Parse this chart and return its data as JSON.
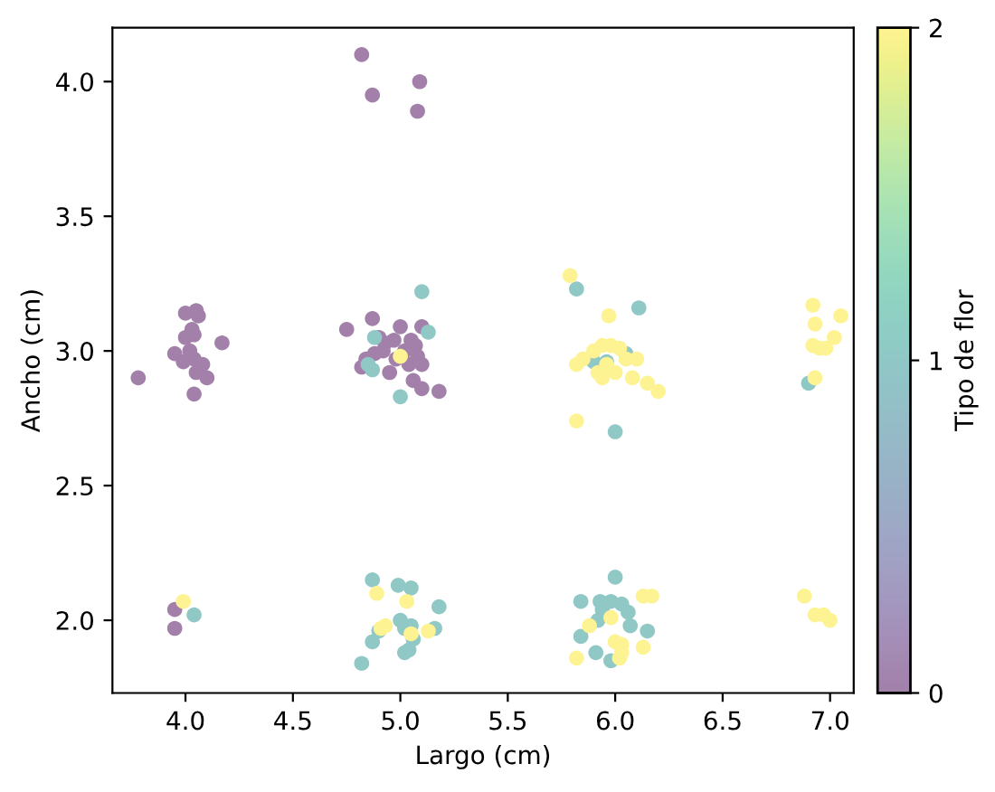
{
  "chart_data": {
    "type": "scatter",
    "xlabel": "Largo (cm)",
    "ylabel": "Ancho (cm)",
    "clabel": "Tipo de flor",
    "xlim": [
      3.66,
      7.11
    ],
    "ylim": [
      1.73,
      4.2
    ],
    "xticks": [
      {
        "value": 4.0,
        "label": "4.0"
      },
      {
        "value": 4.5,
        "label": "4.5"
      },
      {
        "value": 5.0,
        "label": "5.0"
      },
      {
        "value": 5.5,
        "label": "5.5"
      },
      {
        "value": 6.0,
        "label": "6.0"
      },
      {
        "value": 6.5,
        "label": "6.5"
      },
      {
        "value": 7.0,
        "label": "7.0"
      }
    ],
    "yticks": [
      {
        "value": 2.0,
        "label": "2.0"
      },
      {
        "value": 2.5,
        "label": "2.5"
      },
      {
        "value": 3.0,
        "label": "3.0"
      },
      {
        "value": 3.5,
        "label": "3.5"
      },
      {
        "value": 4.0,
        "label": "4.0"
      }
    ],
    "clim": [
      0,
      2
    ],
    "cticks": [
      0,
      1,
      2
    ],
    "marker": "circle",
    "grid": false,
    "legend": false,
    "series": [
      {
        "x": [
          3.78,
          3.95,
          4.0,
          4.05,
          4.03,
          4.04,
          4.02,
          3.99,
          4.04,
          4.08,
          4.1,
          4.05,
          4.04,
          4.17,
          4.0,
          4.06,
          4.82,
          4.87,
          5.09,
          5.08,
          4.75,
          4.87,
          4.84,
          4.9,
          4.93,
          4.97,
          5.0,
          5.05,
          5.1,
          5.07,
          5.08,
          5.04,
          5.1,
          5.06,
          5.1,
          5.18,
          4.95,
          4.82,
          4.98,
          4.92,
          5.02,
          4.88,
          3.95,
          3.95,
          5.1,
          5.13,
          4.88,
          4.85,
          4.87,
          5.0,
          4.04,
          4.87,
          4.99,
          5.05,
          5.18,
          5.16,
          5.0,
          5.02,
          5.05,
          5.06,
          4.9,
          4.87,
          5.02,
          5.04,
          4.82,
          5.82,
          6.11,
          6.05,
          5.9,
          5.96,
          6.0,
          6.0,
          5.84,
          5.93,
          5.98,
          6.03,
          6.06,
          5.94,
          5.92,
          6.07,
          5.84,
          6.15,
          5.91,
          5.98,
          6.9,
          5.0,
          3.99,
          4.89,
          5.03,
          4.91,
          4.93,
          5.05,
          5.13,
          5.79,
          5.97,
          5.85,
          5.82,
          5.9,
          5.94,
          5.98,
          6.02,
          5.96,
          6.0,
          5.92,
          6.05,
          6.1,
          6.15,
          6.2,
          6.08,
          5.94,
          5.82,
          6.13,
          6.17,
          5.88,
          5.98,
          6.0,
          6.03,
          6.03,
          6.13,
          5.82,
          6.02,
          6.92,
          7.05,
          6.93,
          7.02,
          6.92,
          6.95,
          6.98,
          6.93,
          6.88,
          6.93,
          6.97,
          7.0
        ],
        "values": [
          2.9,
          2.99,
          3.14,
          3.15,
          3.08,
          3.06,
          3.0,
          2.96,
          2.97,
          2.95,
          2.9,
          2.92,
          2.84,
          3.03,
          3.05,
          3.13,
          4.1,
          3.95,
          4.0,
          3.89,
          3.08,
          3.12,
          2.97,
          3.05,
          3.03,
          3.04,
          3.09,
          3.04,
          3.09,
          3.02,
          2.98,
          2.95,
          2.95,
          2.89,
          2.86,
          2.85,
          2.92,
          2.94,
          2.97,
          3.0,
          3.0,
          2.99,
          2.04,
          1.97,
          3.22,
          3.07,
          3.05,
          2.95,
          2.93,
          2.83,
          2.02,
          2.15,
          2.13,
          2.12,
          2.05,
          1.97,
          2.0,
          1.97,
          1.98,
          1.93,
          1.96,
          1.92,
          1.88,
          1.89,
          1.84,
          3.23,
          3.16,
          2.99,
          2.96,
          2.96,
          2.7,
          2.16,
          2.07,
          2.07,
          2.07,
          2.06,
          2.03,
          2.04,
          2.0,
          1.98,
          1.94,
          1.96,
          1.88,
          1.85,
          2.88,
          2.98,
          2.07,
          2.1,
          2.07,
          1.97,
          1.98,
          1.95,
          1.96,
          3.28,
          3.13,
          2.97,
          2.95,
          3.0,
          3.02,
          3.02,
          3.01,
          2.95,
          2.92,
          2.92,
          2.97,
          2.97,
          2.88,
          2.85,
          2.9,
          2.9,
          2.74,
          2.09,
          2.09,
          1.98,
          2.01,
          1.92,
          1.91,
          1.88,
          1.9,
          1.86,
          1.86,
          3.17,
          3.13,
          3.1,
          3.05,
          3.02,
          3.01,
          3.01,
          2.9,
          2.09,
          2.02,
          2.02,
          2.0
        ],
        "cvalues": [
          0,
          0,
          0,
          0,
          0,
          0,
          0,
          0,
          0,
          0,
          0,
          0,
          0,
          0,
          0,
          0,
          0,
          0,
          0,
          0,
          0,
          0,
          0,
          0,
          0,
          0,
          0,
          0,
          0,
          0,
          0,
          0,
          0,
          0,
          0,
          0,
          0,
          0,
          0,
          0,
          0,
          0,
          0,
          0,
          1,
          1,
          1,
          1,
          1,
          1,
          1,
          1,
          1,
          1,
          1,
          1,
          1,
          1,
          1,
          1,
          1,
          1,
          1,
          1,
          1,
          1,
          1,
          1,
          1,
          1,
          1,
          1,
          1,
          1,
          1,
          1,
          1,
          1,
          1,
          1,
          1,
          1,
          1,
          1,
          1,
          2,
          2,
          2,
          2,
          2,
          2,
          2,
          2,
          2,
          2,
          2,
          2,
          2,
          2,
          2,
          2,
          2,
          2,
          2,
          2,
          2,
          2,
          2,
          2,
          2,
          2,
          2,
          2,
          2,
          2,
          2,
          2,
          2,
          2,
          2,
          2,
          2,
          2,
          2,
          2,
          2,
          2,
          2,
          2,
          2,
          2,
          2,
          2
        ]
      }
    ]
  }
}
